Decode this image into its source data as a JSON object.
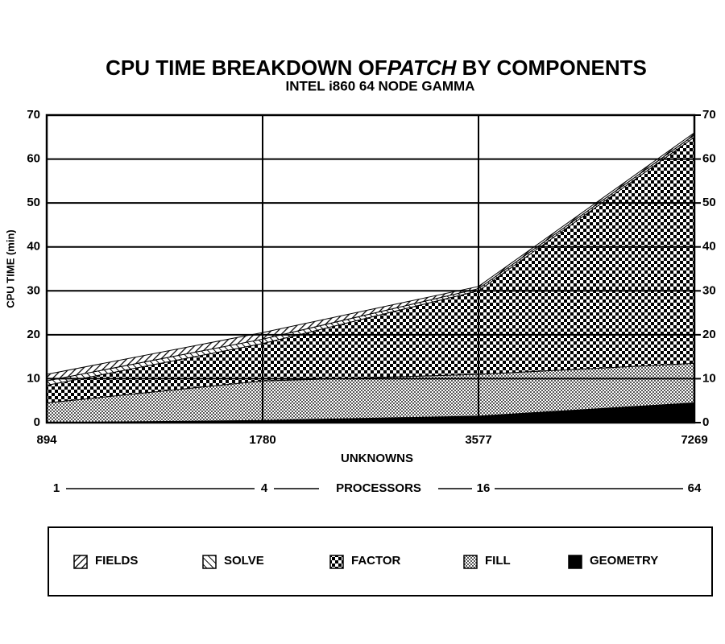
{
  "chart_data": {
    "type": "stacked_area",
    "title": [
      "CPU TIME  BREAKDOWN  OF",
      "PATCH",
      " BY  COMPONENTS"
    ],
    "subtitle": "INTEL i860 64 NODE GAMMA",
    "y_label": "CPU TIME (min)",
    "x_label": "UNKNOWNS",
    "categories": [
      "894",
      "1780",
      "3577",
      "7269"
    ],
    "x2_categories": [
      "1",
      "4",
      "16",
      "64"
    ],
    "x2_label": "PROCESSORS",
    "ylim": [
      0,
      70
    ],
    "yticks": [
      0,
      10,
      20,
      30,
      40,
      50,
      60,
      70
    ],
    "y2lim": [
      0,
      70
    ],
    "y2ticks": [
      0,
      10,
      20,
      30,
      40,
      50,
      60,
      70
    ],
    "grid": true,
    "series": [
      {
        "name": "FIELDS",
        "color": "#000000",
        "pattern": "hatch",
        "values": [
          1.5,
          1.5,
          0.5,
          0.5
        ]
      },
      {
        "name": "SOLVE",
        "color": "#000000",
        "pattern": "backhatch",
        "values": [
          1,
          1,
          0.5,
          0.5
        ]
      },
      {
        "name": "FACTOR",
        "color": "#000000",
        "pattern": "checker",
        "values": [
          4,
          8.5,
          19,
          51.5
        ]
      },
      {
        "name": "FILL",
        "color": "#000000",
        "pattern": "crosshatch",
        "values": [
          4.5,
          9,
          9.5,
          9
        ]
      },
      {
        "name": "GEOMETRY",
        "color": "#000000",
        "pattern": "solid",
        "values": [
          0,
          0.5,
          1.5,
          4.5
        ]
      }
    ]
  }
}
